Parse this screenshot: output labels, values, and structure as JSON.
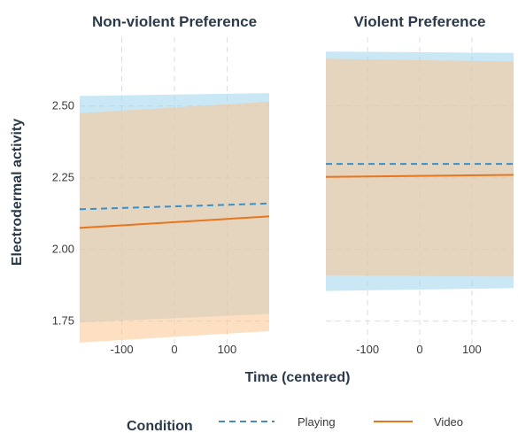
{
  "chart_data": {
    "type": "line",
    "xlabel": "Time (centered)",
    "ylabel": "Electrodermal activity",
    "xlim": [
      -180,
      180
    ],
    "ylim": [
      1.65,
      2.74
    ],
    "x_ticks": [
      -100,
      0,
      100
    ],
    "x_tick_labels": [
      "-100",
      "0",
      "100"
    ],
    "y_ticks": [
      1.75,
      2.0,
      2.25,
      2.5
    ],
    "y_tick_labels": [
      "1.75",
      "2.00",
      "2.25",
      "2.50"
    ],
    "grid": true,
    "legend": {
      "title": "Condition",
      "position": "bottom",
      "entries": [
        {
          "name": "Playing",
          "linetype": "dashed",
          "color": "#3d8fc4"
        },
        {
          "name": "Video",
          "linetype": "solid",
          "color": "#e8761e"
        }
      ]
    },
    "facets": [
      {
        "title": "Non-violent Preference",
        "series": [
          {
            "name": "Playing",
            "x": [
              -180,
              180
            ],
            "y": [
              2.14,
              2.16
            ],
            "ci_lower": [
              1.745,
              1.775
            ],
            "ci_upper": [
              2.535,
              2.545
            ]
          },
          {
            "name": "Video",
            "x": [
              -180,
              180
            ],
            "y": [
              2.075,
              2.115
            ],
            "ci_lower": [
              1.675,
              1.715
            ],
            "ci_upper": [
              2.475,
              2.515
            ]
          }
        ]
      },
      {
        "title": "Violent Preference",
        "series": [
          {
            "name": "Playing",
            "x": [
              -180,
              180
            ],
            "y": [
              2.298,
              2.298
            ],
            "ci_lower": [
              1.855,
              1.865
            ],
            "ci_upper": [
              2.69,
              2.685
            ]
          },
          {
            "name": "Video",
            "x": [
              -180,
              180
            ],
            "y": [
              2.253,
              2.26
            ],
            "ci_lower": [
              1.91,
              1.905
            ],
            "ci_upper": [
              2.665,
              2.655
            ]
          }
        ]
      }
    ]
  },
  "colors": {
    "playing": "#3d8fc4",
    "video": "#e8761e",
    "playing_band": "#9fd3ef",
    "video_band": "#fcc48f",
    "grid": "#dcdcdc",
    "text": "#2b3a4a"
  }
}
